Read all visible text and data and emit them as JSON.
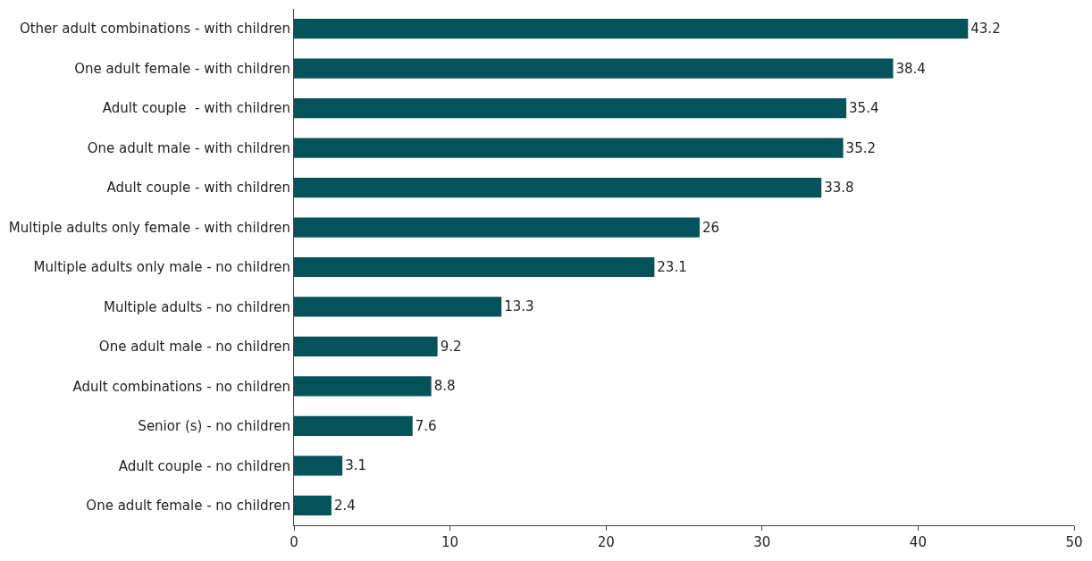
{
  "chart_data": {
    "type": "bar",
    "orientation": "horizontal",
    "categories": [
      "Other adult combinations - with children",
      "One adult female - with children",
      "Adult couple  - with children",
      "One adult male - with children",
      "Adult couple - with children",
      "Multiple adults only female - with children",
      "Multiple adults only male - no children",
      "Multiple adults - no children",
      "One adult male - no children",
      "Adult combinations - no children",
      "Senior (s) - no children",
      "Adult couple - no children",
      "One adult female - no children"
    ],
    "values": [
      43.2,
      38.4,
      35.4,
      35.2,
      33.8,
      26,
      23.1,
      13.3,
      9.2,
      8.8,
      7.6,
      3.1,
      2.4
    ],
    "color": "#04535a",
    "xlim": [
      0,
      50
    ],
    "xticks": [
      0,
      10,
      20,
      30,
      40,
      50
    ],
    "grid": false,
    "legend": false,
    "data_labels": true
  }
}
